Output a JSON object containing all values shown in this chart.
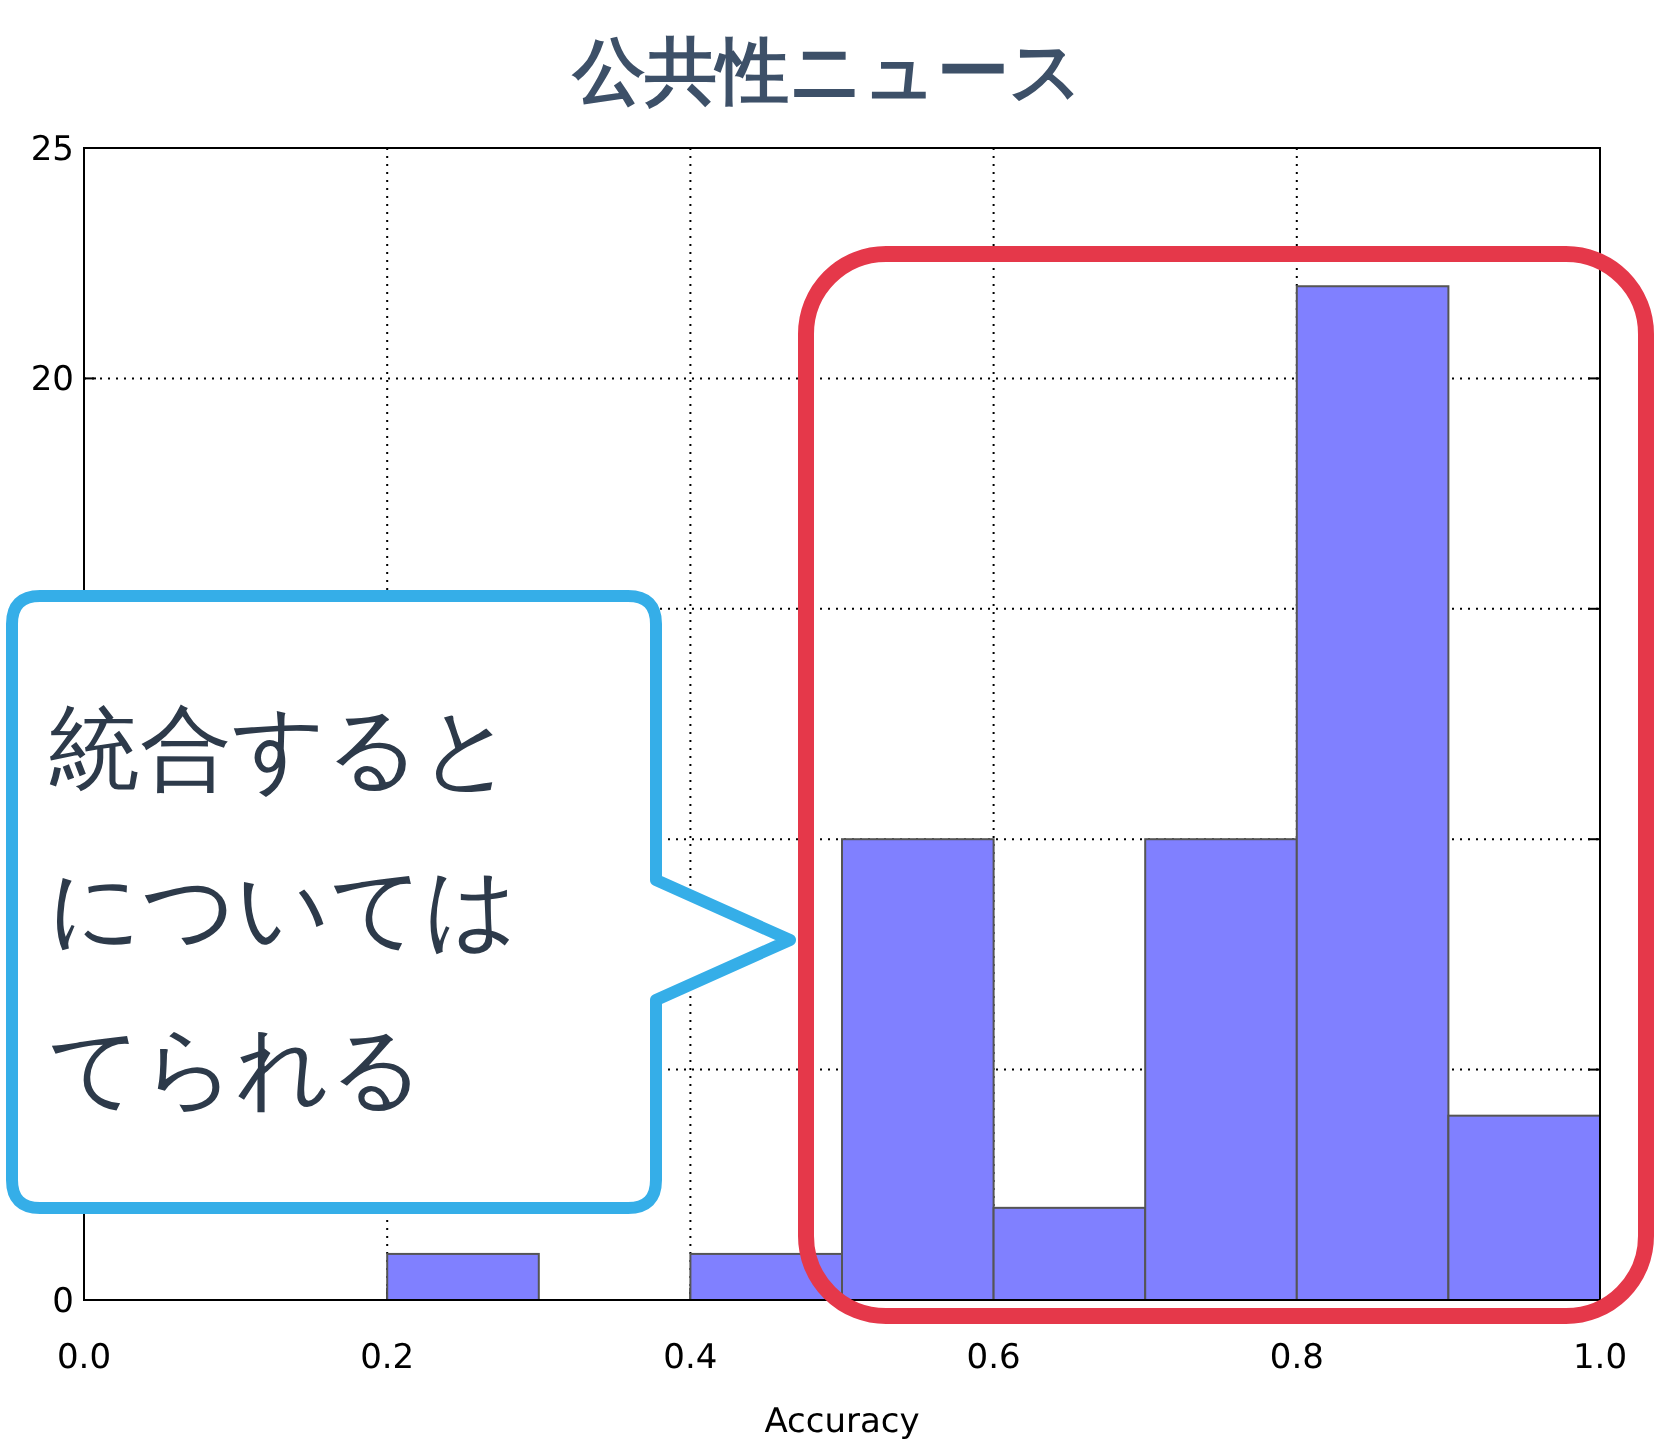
{
  "chart_data": {
    "type": "histogram",
    "title": "公共性ニュース",
    "xlabel": "Accuracy",
    "bins": [
      0,
      0.1,
      0.2,
      0.3,
      0.4,
      0.5,
      0.6,
      0.7,
      0.8,
      0.9,
      1.0
    ],
    "values": [
      0,
      0,
      1,
      0,
      1,
      10,
      2,
      10,
      22,
      4
    ],
    "color": "#8080ff",
    "xlim": [
      0,
      1
    ],
    "ylim": [
      0,
      25
    ],
    "xticks": [
      {
        "value": 0,
        "label": "0.0"
      },
      {
        "value": 0.2,
        "label": "0.2"
      },
      {
        "value": 0.4,
        "label": "0.4"
      },
      {
        "value": 0.6,
        "label": "0.6"
      },
      {
        "value": 0.8,
        "label": "0.8"
      },
      {
        "value": 1,
        "label": "1.0"
      }
    ],
    "yticks": [
      0,
      {
        "value": 5,
        "label": null
      },
      {
        "value": 10,
        "label": null
      },
      {
        "value": 15,
        "label": null
      },
      20,
      25
    ],
    "grid": true,
    "annotations": [
      "統合すると",
      "については",
      "てられる"
    ]
  }
}
